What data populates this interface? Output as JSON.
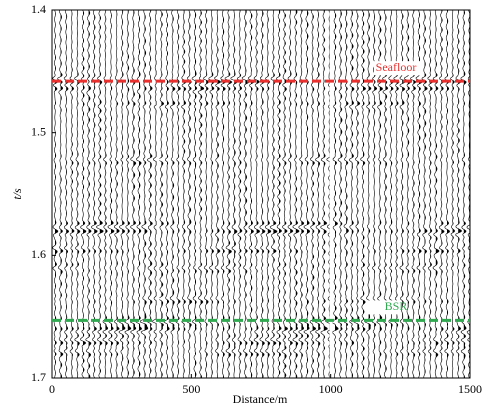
{
  "chart_data": {
    "type": "seismic",
    "xlabel": "Distance/m",
    "ylabel": "t/s",
    "xlim": [
      0,
      1500
    ],
    "xticks": [
      0,
      500,
      1000,
      1500
    ],
    "ylim": [
      1.4,
      1.7
    ],
    "yticks": [
      1.4,
      1.5,
      1.6,
      1.7
    ],
    "y_inverted": true,
    "horizons": [
      {
        "name": "Seafloor",
        "color": "#e8312f",
        "t": 1.458
      },
      {
        "name": "BSR",
        "color": "#2fa84f",
        "t": 1.653
      }
    ]
  }
}
